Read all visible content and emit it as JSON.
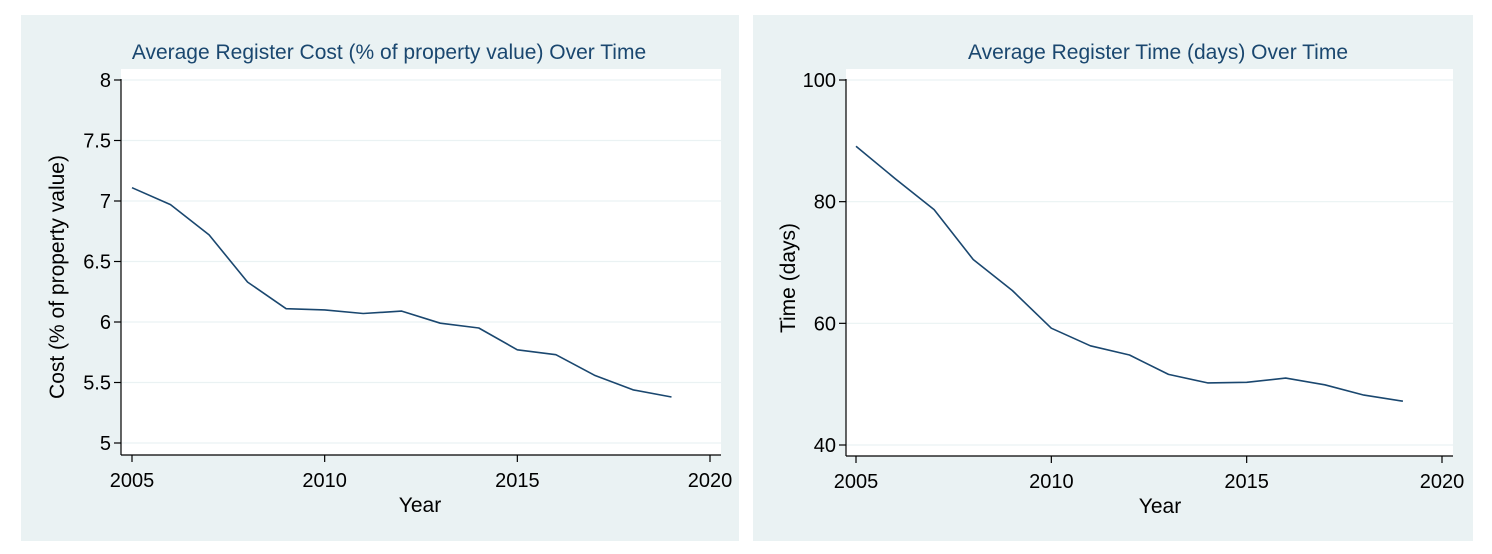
{
  "chart_data": [
    {
      "type": "line",
      "title": "Average Register Cost (% of property value) Over Time",
      "xlabel": "Year",
      "ylabel": "Cost (% of property value)",
      "xlim": [
        2005,
        2020
      ],
      "ylim": [
        5,
        8
      ],
      "xticks": [
        2005,
        2010,
        2015,
        2020
      ],
      "yticks": [
        5,
        5.5,
        6,
        6.5,
        7,
        7.5,
        8
      ],
      "grid": true,
      "series": [
        {
          "x": [
            2005,
            2006,
            2007,
            2008,
            2009,
            2010,
            2011,
            2012,
            2013,
            2014,
            2015,
            2016,
            2017,
            2018,
            2019
          ],
          "values": [
            7.11,
            6.97,
            6.72,
            6.33,
            6.11,
            6.1,
            6.07,
            6.09,
            5.99,
            5.95,
            5.77,
            5.73,
            5.56,
            5.44,
            5.38
          ]
        }
      ],
      "colors": {
        "line": "#1a476f",
        "title": "#1a476f",
        "background": "#eaf2f3",
        "plot": "#ffffff",
        "grid": "#eaf2f3"
      }
    },
    {
      "type": "line",
      "title": "Average Register Time (days) Over Time",
      "xlabel": "Year",
      "ylabel": "Time (days)",
      "xlim": [
        2005,
        2020
      ],
      "ylim": [
        40,
        100
      ],
      "xticks": [
        2005,
        2010,
        2015,
        2020
      ],
      "yticks": [
        40,
        60,
        80,
        100
      ],
      "grid": true,
      "series": [
        {
          "x": [
            2005,
            2006,
            2007,
            2008,
            2009,
            2010,
            2011,
            2012,
            2013,
            2014,
            2015,
            2016,
            2017,
            2018,
            2019
          ],
          "values": [
            89.1,
            83.8,
            78.7,
            70.5,
            65.4,
            59.2,
            56.3,
            54.8,
            51.6,
            50.2,
            50.3,
            51.0,
            49.9,
            48.2,
            47.2
          ]
        }
      ],
      "colors": {
        "line": "#1a476f",
        "title": "#1a476f",
        "background": "#eaf2f3",
        "plot": "#ffffff",
        "grid": "#eaf2f3"
      }
    }
  ]
}
